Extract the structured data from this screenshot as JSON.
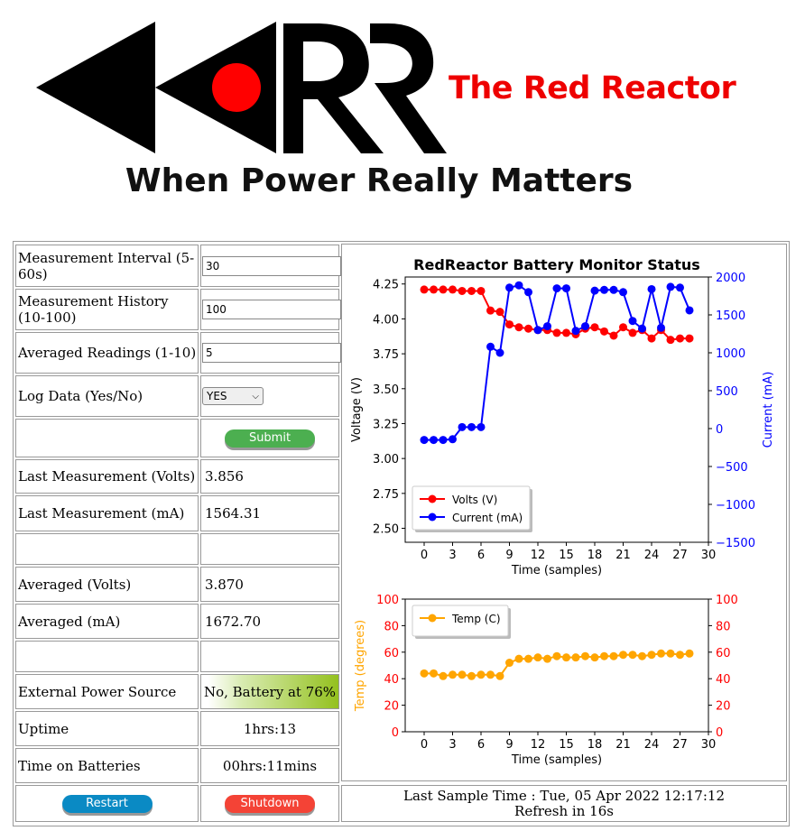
{
  "brand": {
    "name": "The Red Reactor",
    "tagline": "When Power Really Matters"
  },
  "settings": [
    {
      "label": "Measurement Interval (5-60s)",
      "value": "30"
    },
    {
      "label": "Measurement History (10-100)",
      "value": "100"
    },
    {
      "label": "Averaged Readings (1-10)",
      "value": "5"
    }
  ],
  "log": {
    "label": "Log Data (Yes/No)",
    "selected": "YES"
  },
  "submit_label": "Submit",
  "readings": {
    "last_volts_label": "Last Measurement (Volts)",
    "last_volts": "3.856",
    "last_ma_label": "Last Measurement (mA)",
    "last_ma": "1564.31",
    "avg_volts_label": "Averaged (Volts)",
    "avg_volts": "3.870",
    "avg_ma_label": "Averaged (mA)",
    "avg_ma": "1672.70",
    "power_label": "External Power Source",
    "power": "No, Battery at 76%",
    "uptime_label": "Uptime",
    "uptime": "1hrs:13",
    "batt_label": "Time on Batteries",
    "batt": "00hrs:11mins"
  },
  "buttons": {
    "restart": "Restart",
    "shutdown": "Shutdown"
  },
  "footer": {
    "sample_time": "Last Sample Time : Tue, 05 Apr 2022 12:17:12",
    "refresh": "Refresh in 16s"
  },
  "colors": {
    "brand_red": "#e00000",
    "volts": "#ff0000",
    "current": "#0000ff",
    "temp": "#ffa500"
  },
  "chart_data": [
    {
      "type": "line",
      "title": "RedReactor Battery Monitor Status",
      "xlabel": "Time (samples)",
      "ylabel": "Voltage (V)",
      "y2label": "Current (mA)",
      "xlim": [
        -2,
        30
      ],
      "ylim": [
        2.4,
        4.3
      ],
      "y2lim": [
        -1500,
        2000
      ],
      "xticks": [
        0,
        3,
        6,
        9,
        12,
        15,
        18,
        21,
        24,
        27,
        30
      ],
      "yticks": [
        2.5,
        2.75,
        3.0,
        3.25,
        3.5,
        3.75,
        4.0,
        4.25
      ],
      "y2ticks": [
        -1500,
        -1000,
        -500,
        0,
        500,
        1000,
        1500,
        2000
      ],
      "x": [
        0,
        1,
        2,
        3,
        4,
        5,
        6,
        7,
        8,
        9,
        10,
        11,
        12,
        13,
        14,
        15,
        16,
        17,
        18,
        19,
        20,
        21,
        22,
        23,
        24,
        25,
        26,
        27,
        28
      ],
      "legend": "bottom-left",
      "series": [
        {
          "name": "Volts (V)",
          "axis": "left",
          "values": [
            4.21,
            4.21,
            4.21,
            4.21,
            4.2,
            4.2,
            4.2,
            4.06,
            4.05,
            3.96,
            3.94,
            3.93,
            3.92,
            3.92,
            3.9,
            3.9,
            3.89,
            3.93,
            3.94,
            3.91,
            3.88,
            3.94,
            3.9,
            3.92,
            3.86,
            3.92,
            3.85,
            3.86,
            3.86
          ]
        },
        {
          "name": "Current (mA)",
          "axis": "right",
          "values": [
            -150,
            -150,
            -150,
            -140,
            20,
            20,
            20,
            1080,
            1000,
            1860,
            1890,
            1800,
            1300,
            1350,
            1850,
            1850,
            1290,
            1350,
            1820,
            1830,
            1830,
            1800,
            1420,
            1320,
            1840,
            1330,
            1870,
            1860,
            1560
          ]
        }
      ]
    },
    {
      "type": "line",
      "xlabel": "Time (samples)",
      "ylabel": "Temp (degrees)",
      "xlim": [
        -2,
        30
      ],
      "ylim": [
        0,
        100
      ],
      "y2lim": [
        0,
        100
      ],
      "xticks": [
        0,
        3,
        6,
        9,
        12,
        15,
        18,
        21,
        24,
        27,
        30
      ],
      "yticks": [
        0,
        20,
        40,
        60,
        80,
        100
      ],
      "x": [
        0,
        1,
        2,
        3,
        4,
        5,
        6,
        7,
        8,
        9,
        10,
        11,
        12,
        13,
        14,
        15,
        16,
        17,
        18,
        19,
        20,
        21,
        22,
        23,
        24,
        25,
        26,
        27,
        28
      ],
      "legend": "top-left",
      "series": [
        {
          "name": "Temp (C)",
          "values": [
            44,
            44,
            42,
            43,
            43,
            42,
            43,
            43,
            42,
            52,
            55,
            55,
            56,
            55,
            57,
            56,
            56,
            57,
            56,
            57,
            57,
            58,
            58,
            57,
            58,
            59,
            59,
            58,
            59
          ]
        }
      ]
    }
  ]
}
